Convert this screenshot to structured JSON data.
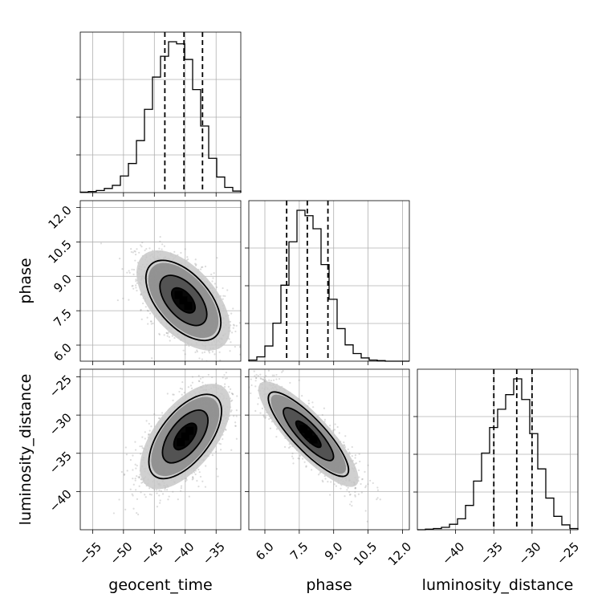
{
  "chart_data": {
    "type": "corner",
    "parameters": [
      "geocent_time",
      "phase",
      "luminosity_distance"
    ],
    "axes": {
      "geocent_time": {
        "range": [
          -57,
          -31
        ],
        "ticks": [
          -55,
          -50,
          -45,
          -40,
          -35
        ],
        "tick_labels": [
          "−55",
          "−50",
          "−45",
          "−40",
          "−35"
        ]
      },
      "phase": {
        "range": [
          5.3,
          12.3
        ],
        "ticks": [
          6.0,
          7.5,
          9.0,
          10.5,
          12.0
        ],
        "tick_labels": [
          "6.0",
          "7.5",
          "9.0",
          "10.5",
          "12.0"
        ]
      },
      "luminosity_distance": {
        "range": [
          -45,
          -24
        ],
        "ticks": [
          -40,
          -35,
          -30,
          -25
        ],
        "tick_labels": [
          "−40",
          "−35",
          "−30",
          "−25"
        ]
      }
    },
    "histograms": [
      {
        "parameter": "geocent_time",
        "bin_edges": [
          -57,
          -55.7,
          -54.4,
          -53.1,
          -51.8,
          -50.5,
          -49.2,
          -47.9,
          -46.6,
          -45.3,
          -44,
          -42.7,
          -41.4,
          -40.1,
          -38.8,
          -37.5,
          -36.2,
          -34.9,
          -33.6,
          -32.3,
          -31
        ],
        "counts": [
          1,
          2,
          4,
          8,
          14,
          32,
          56,
          100,
          160,
          222,
          262,
          290,
          286,
          256,
          198,
          128,
          66,
          30,
          10,
          3
        ],
        "quantiles": [
          -43.3,
          -40.2,
          -37.2
        ]
      },
      {
        "parameter": "phase",
        "bin_edges": [
          5.3,
          5.65,
          6.0,
          6.35,
          6.7,
          7.05,
          7.4,
          7.75,
          8.1,
          8.45,
          8.8,
          9.15,
          9.5,
          9.85,
          10.2,
          10.55,
          10.9,
          11.25,
          11.6,
          11.95,
          12.3
        ],
        "counts": [
          2,
          8,
          28,
          70,
          140,
          220,
          278,
          268,
          244,
          178,
          114,
          60,
          30,
          14,
          6,
          2,
          1,
          0,
          0,
          0
        ],
        "quantiles": [
          6.95,
          7.85,
          8.75
        ]
      },
      {
        "parameter": "luminosity_distance",
        "bin_edges": [
          -45,
          -43.95,
          -42.9,
          -41.85,
          -40.8,
          -39.75,
          -38.7,
          -37.65,
          -36.6,
          -35.55,
          -34.5,
          -33.45,
          -32.4,
          -31.35,
          -30.3,
          -29.25,
          -28.2,
          -27.15,
          -26.1,
          -25.05,
          -24
        ],
        "counts": [
          0,
          1,
          2,
          4,
          9,
          18,
          40,
          80,
          126,
          168,
          198,
          222,
          248,
          214,
          158,
          100,
          52,
          22,
          8,
          2
        ],
        "quantiles": [
          -35.0,
          -32.0,
          -30.0
        ]
      }
    ],
    "pairs": [
      {
        "x": "geocent_time",
        "y": "phase",
        "mean": [
          -40.3,
          7.95
        ],
        "std": [
          3.3,
          0.95
        ],
        "corr": -0.55
      },
      {
        "x": "geocent_time",
        "y": "luminosity_distance",
        "mean": [
          -40.0,
          -32.8
        ],
        "std": [
          3.2,
          3.0
        ],
        "corr": 0.6
      },
      {
        "x": "phase",
        "y": "luminosity_distance",
        "mean": [
          7.9,
          -32.5
        ],
        "std": [
          0.95,
          3.0
        ],
        "corr": -0.85
      }
    ],
    "contour_levels_sigma": [
      0.5,
      1.0,
      1.5,
      2.0
    ],
    "grid": true
  }
}
